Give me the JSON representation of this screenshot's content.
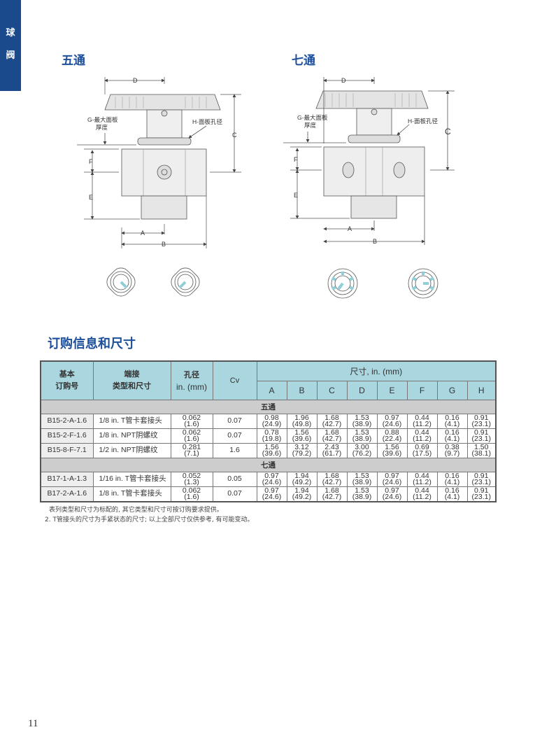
{
  "sidebar_tab": {
    "line1": "球",
    "line2": "阀",
    "color": "#1a4a8c"
  },
  "diagrams": [
    {
      "title": "五通",
      "labels": {
        "d": "D",
        "c": "C",
        "f": "F",
        "e": "E",
        "a": "A",
        "b": "B",
        "g1": "G-最大面板",
        "g2": "厚度",
        "h": "H-面板孔径"
      }
    },
    {
      "title": "七通",
      "labels": {
        "d": "D",
        "c": "C",
        "f": "F",
        "e": "E",
        "a": "A",
        "b": "B",
        "g1": "G-最大面板",
        "g2": "厚度",
        "h": "H-面板孔径"
      }
    }
  ],
  "section_title": "订购信息和尺寸",
  "table": {
    "headers": {
      "order_no_1": "基本",
      "order_no_2": "订购号",
      "end_1": "端接",
      "end_2": "类型和尺寸",
      "orifice_1": "孔径",
      "orifice_2": "in. (mm)",
      "cv": "Cv",
      "dims": "尺寸, in. (mm)",
      "dim_cols": [
        "A",
        "B",
        "C",
        "D",
        "E",
        "F",
        "G",
        "H"
      ]
    },
    "header_color": "#a9d6df",
    "groups": [
      {
        "name": "五通",
        "rows": [
          {
            "code": "B15-2-A-1.6",
            "end": "1/8 in. T管卡套接头",
            "orifice": [
              "0.062",
              "(1.6)"
            ],
            "cv": "0.07",
            "dims": [
              [
                "0.98",
                "(24.9)"
              ],
              [
                "1.96",
                "(49.8)"
              ],
              [
                "1.68",
                "(42.7)"
              ],
              [
                "1.53",
                "(38.9)"
              ],
              [
                "0.97",
                "(24.6)"
              ],
              [
                "0.44",
                "(11.2)"
              ],
              [
                "0.16",
                "(4.1)"
              ],
              [
                "0.91",
                "(23.1)"
              ]
            ]
          },
          {
            "code": "B15-2-F-1.6",
            "end": "1/8 in. NPT阴螺纹",
            "orifice": [
              "0.062",
              "(1.6)"
            ],
            "cv": "0.07",
            "dims": [
              [
                "0.78",
                "(19.8)"
              ],
              [
                "1.56",
                "(39.6)"
              ],
              [
                "1.68",
                "(42.7)"
              ],
              [
                "1.53",
                "(38.9)"
              ],
              [
                "0.88",
                "(22.4)"
              ],
              [
                "0.44",
                "(11.2)"
              ],
              [
                "0.16",
                "(4.1)"
              ],
              [
                "0.91",
                "(23.1)"
              ]
            ]
          },
          {
            "code": "B15-8-F-7.1",
            "end": "1/2 in. NPT阴螺纹",
            "orifice": [
              "0.281",
              "(7.1)"
            ],
            "cv": "1.6",
            "dims": [
              [
                "1.56",
                "(39.6)"
              ],
              [
                "3.12",
                "(79.2)"
              ],
              [
                "2.43",
                "(61.7)"
              ],
              [
                "3.00",
                "(76.2)"
              ],
              [
                "1.56",
                "(39.6)"
              ],
              [
                "0.69",
                "(17.5)"
              ],
              [
                "0.38",
                "(9.7)"
              ],
              [
                "1.50",
                "(38.1)"
              ]
            ]
          }
        ]
      },
      {
        "name": "七通",
        "rows": [
          {
            "code": "B17-1-A-1.3",
            "end": "1/16 in. T管卡套接头",
            "orifice": [
              "0.052",
              "(1.3)"
            ],
            "cv": "0.05",
            "dims": [
              [
                "0.97",
                "(24.6)"
              ],
              [
                "1.94",
                "(49.2)"
              ],
              [
                "1.68",
                "(42.7)"
              ],
              [
                "1.53",
                "(38.9)"
              ],
              [
                "0.97",
                "(24.6)"
              ],
              [
                "0.44",
                "(11.2)"
              ],
              [
                "0.16",
                "(4.1)"
              ],
              [
                "0.91",
                "(23.1)"
              ]
            ]
          },
          {
            "code": "B17-2-A-1.6",
            "end": "1/8 in. T管卡套接头",
            "orifice": [
              "0.062",
              "(1.6)"
            ],
            "cv": "0.07",
            "dims": [
              [
                "0.97",
                "(24.6)"
              ],
              [
                "1.94",
                "(49.2)"
              ],
              [
                "1.68",
                "(42.7)"
              ],
              [
                "1.53",
                "(38.9)"
              ],
              [
                "0.97",
                "(24.6)"
              ],
              [
                "0.44",
                "(11.2)"
              ],
              [
                "0.16",
                "(4.1)"
              ],
              [
                "0.91",
                "(23.1)"
              ]
            ]
          }
        ]
      }
    ]
  },
  "notes": [
    "表列类型和尺寸为标配的, 其它类型和尺寸可按订购要求提供。",
    "2. T管接头的尺寸为手紧状态的尺寸; 以上全部尺寸仅供参考, 有可能变动。"
  ],
  "page_number": "11"
}
